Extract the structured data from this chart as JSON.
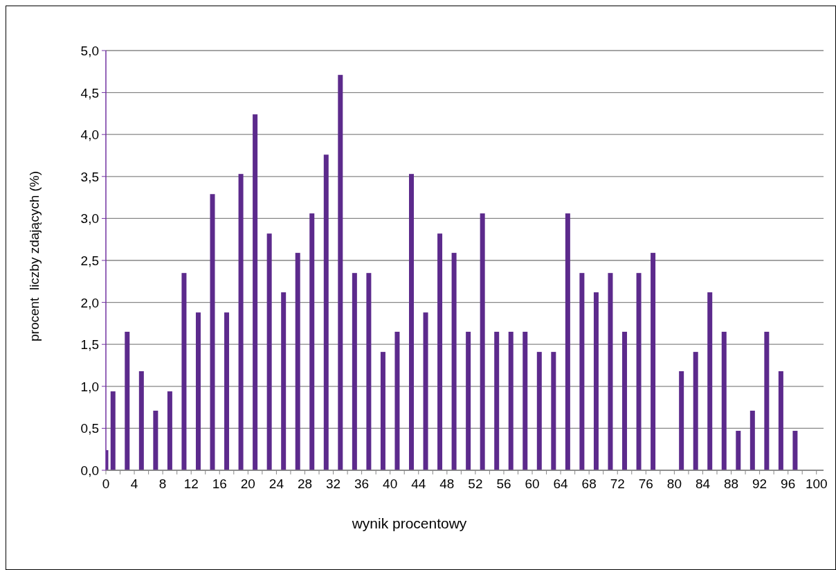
{
  "chart_data": {
    "type": "bar",
    "xlabel": "wynik procentowy",
    "ylabel": "procent  liczby zdających (%)",
    "color": "#5c2a8c",
    "x": [
      0,
      1,
      3,
      5,
      7,
      9,
      11,
      13,
      15,
      17,
      19,
      21,
      23,
      25,
      27,
      29,
      31,
      33,
      35,
      37,
      39,
      41,
      43,
      45,
      47,
      49,
      51,
      53,
      55,
      57,
      59,
      61,
      63,
      65,
      67,
      69,
      71,
      73,
      75,
      77,
      81,
      83,
      85,
      87,
      89,
      91,
      93,
      95,
      97
    ],
    "values": [
      0.24,
      0.94,
      1.65,
      1.18,
      0.71,
      0.94,
      2.35,
      1.88,
      3.29,
      1.88,
      3.53,
      4.24,
      2.82,
      2.12,
      2.59,
      3.06,
      3.76,
      4.71,
      2.35,
      2.35,
      1.41,
      1.65,
      3.53,
      1.88,
      2.82,
      2.59,
      1.65,
      3.06,
      1.65,
      1.65,
      1.65,
      1.41,
      1.41,
      3.06,
      2.35,
      2.12,
      2.35,
      1.65,
      2.35,
      2.59,
      1.18,
      1.41,
      2.12,
      1.65,
      0.47,
      0.71,
      1.65,
      1.18,
      0.47
    ],
    "xlim": [
      0,
      101
    ],
    "xticks": [
      0,
      {
        "value": 2,
        "label": null
      },
      4,
      {
        "value": 6,
        "label": null
      },
      8,
      {
        "value": 10,
        "label": null
      },
      12,
      {
        "value": 14,
        "label": null
      },
      16,
      {
        "value": 18,
        "label": null
      },
      20,
      {
        "value": 22,
        "label": null
      },
      24,
      {
        "value": 26,
        "label": null
      },
      28,
      {
        "value": 30,
        "label": null
      },
      32,
      {
        "value": 34,
        "label": null
      },
      36,
      {
        "value": 38,
        "label": null
      },
      40,
      {
        "value": 42,
        "label": null
      },
      44,
      {
        "value": 46,
        "label": null
      },
      48,
      {
        "value": 50,
        "label": null
      },
      52,
      {
        "value": 54,
        "label": null
      },
      56,
      {
        "value": 58,
        "label": null
      },
      60,
      {
        "value": 62,
        "label": null
      },
      64,
      {
        "value": 66,
        "label": null
      },
      68,
      {
        "value": 70,
        "label": null
      },
      72,
      {
        "value": 74,
        "label": null
      },
      76,
      {
        "value": 78,
        "label": null
      },
      80,
      {
        "value": 82,
        "label": null
      },
      84,
      {
        "value": 86,
        "label": null
      },
      88,
      {
        "value": 90,
        "label": null
      },
      92,
      {
        "value": 94,
        "label": null
      },
      96,
      {
        "value": 98,
        "label": null
      },
      100
    ],
    "ylim": [
      0,
      5
    ],
    "yticks": [
      {
        "value": 0,
        "label": "0,0"
      },
      {
        "value": 0.5,
        "label": "0,5"
      },
      {
        "value": 1,
        "label": "1,0"
      },
      {
        "value": 1.5,
        "label": "1,5"
      },
      {
        "value": 2,
        "label": "2,0"
      },
      {
        "value": 2.5,
        "label": "2,5"
      },
      {
        "value": 3,
        "label": "3,0"
      },
      {
        "value": 3.5,
        "label": "3,5"
      },
      {
        "value": 4,
        "label": "4,0"
      },
      {
        "value": 4.5,
        "label": "4,5"
      },
      {
        "value": 5,
        "label": "5,0"
      }
    ],
    "grid": "y"
  }
}
